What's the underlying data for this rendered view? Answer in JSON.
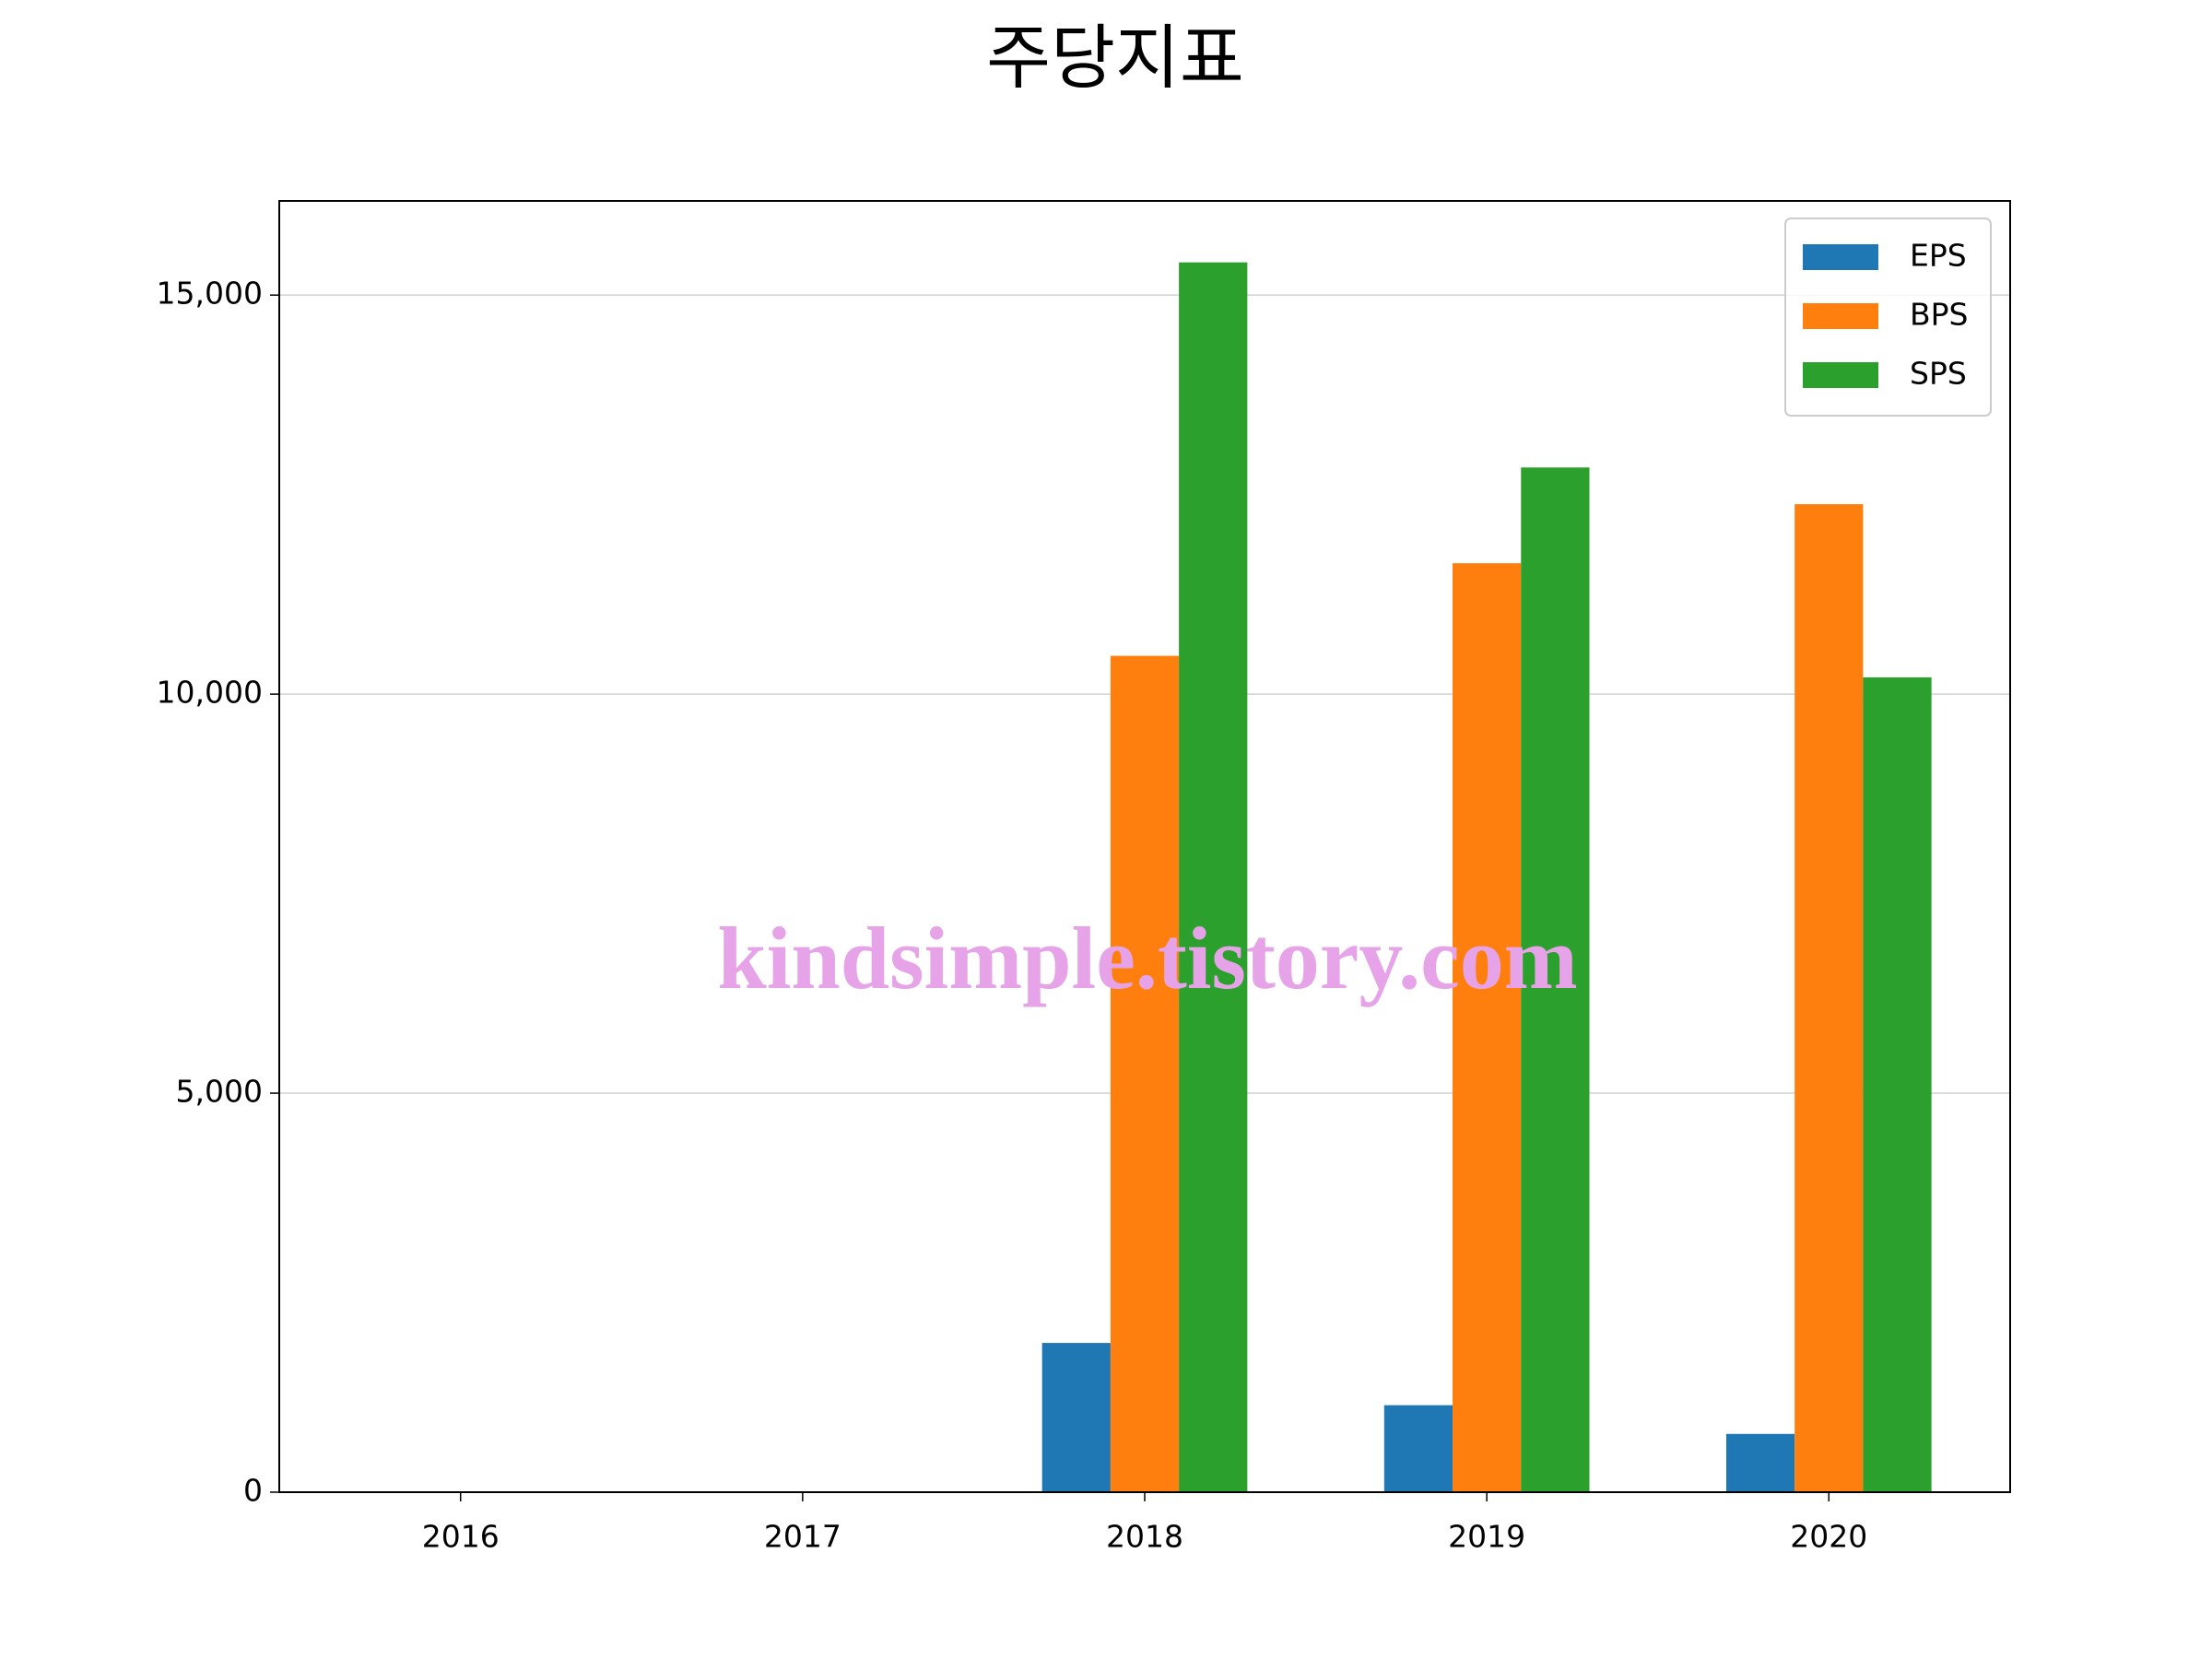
{
  "chart_data": {
    "type": "bar",
    "title": "주당지표",
    "categories": [
      "2016",
      "2017",
      "2018",
      "2019",
      "2020"
    ],
    "series": [
      {
        "name": "EPS",
        "color": "#1f77b4",
        "values": [
          null,
          null,
          1870,
          1090,
          730
        ]
      },
      {
        "name": "BPS",
        "color": "#ff7f0e",
        "values": [
          null,
          null,
          10480,
          11640,
          12380
        ]
      },
      {
        "name": "SPS",
        "color": "#2ca02c",
        "values": [
          null,
          null,
          15410,
          12840,
          10210
        ]
      }
    ],
    "ylim": [
      0,
      16180
    ],
    "yticks": [
      0,
      {
        "value": 5000,
        "label": "5,000"
      },
      {
        "value": 10000,
        "label": "10,000"
      },
      {
        "value": 15000,
        "label": "15,000"
      }
    ],
    "grid": true,
    "legend": "upper right",
    "watermark": "kindsimple.tistory.com"
  }
}
